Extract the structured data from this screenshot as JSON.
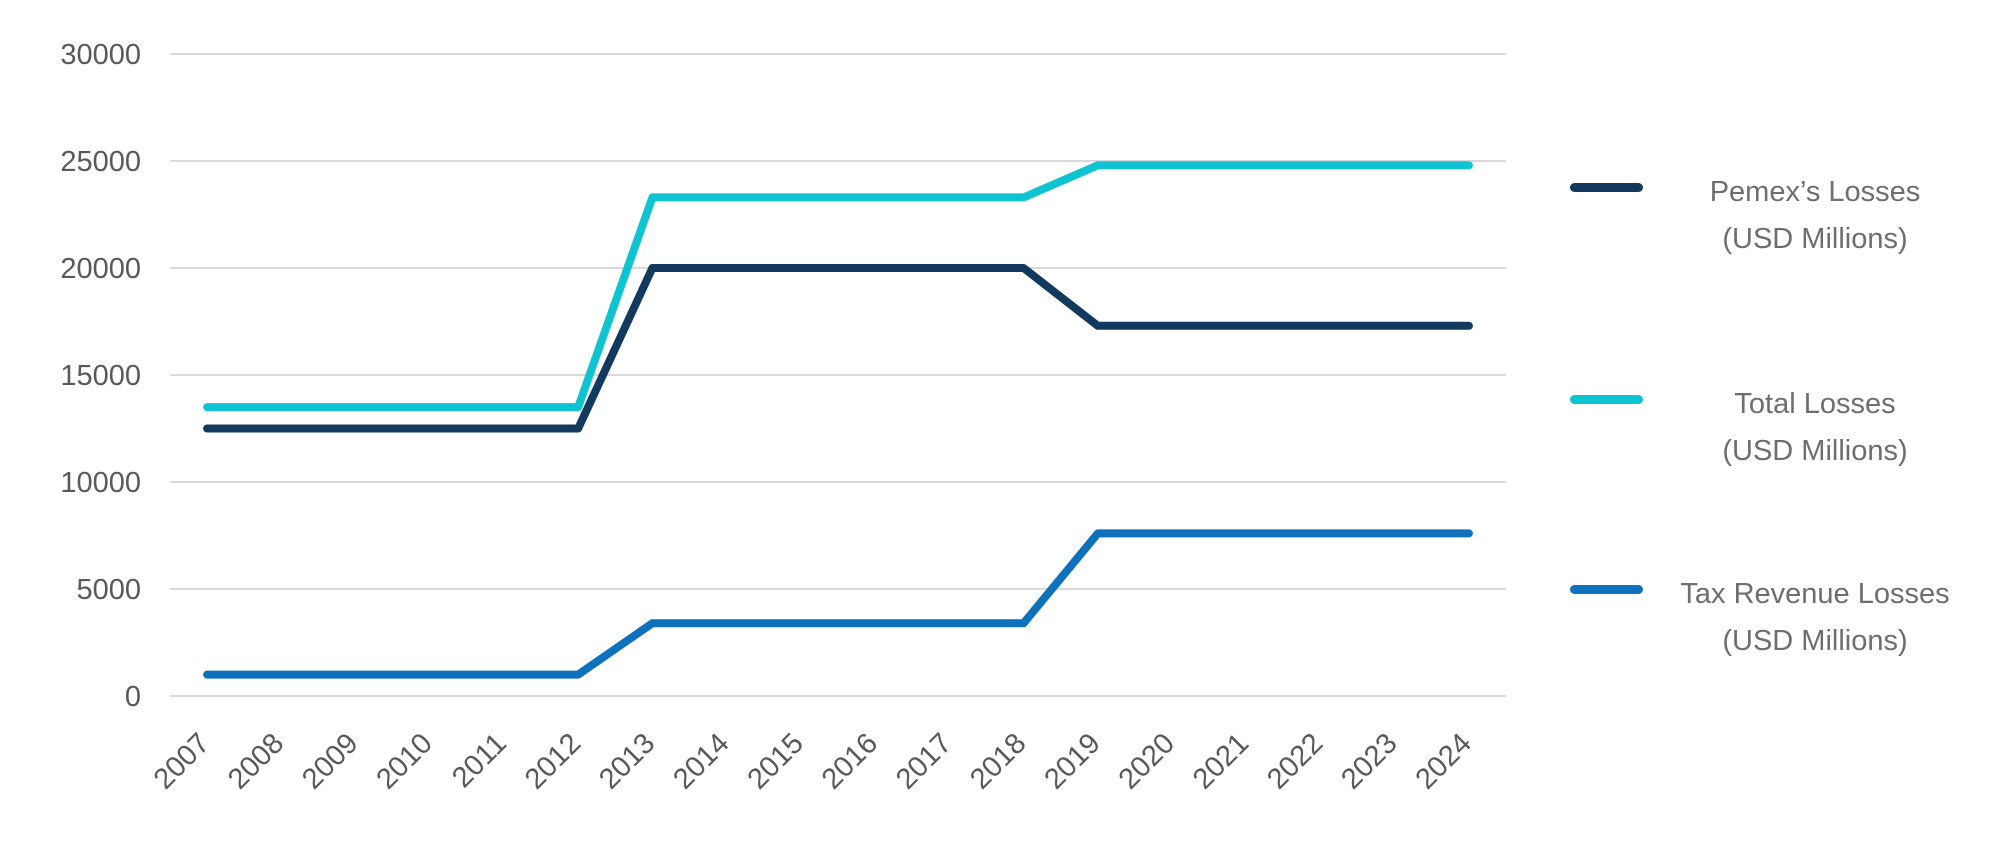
{
  "chart_data": {
    "type": "line",
    "title": "",
    "xlabel": "",
    "ylabel": "",
    "categories": [
      "2007",
      "2008",
      "2009",
      "2010",
      "2011",
      "2012",
      "2013",
      "2014",
      "2015",
      "2016",
      "2017",
      "2018",
      "2019",
      "2020",
      "2021",
      "2022",
      "2023",
      "2024"
    ],
    "series": [
      {
        "name": "Pemex’s Losses (USD Millions)",
        "legend_line1": "Pemex’s Losses",
        "legend_line2": "(USD Millions)",
        "color": "#12395e",
        "values": [
          12500,
          12500,
          12500,
          12500,
          12500,
          12500,
          20000,
          20000,
          20000,
          20000,
          20000,
          20000,
          17300,
          17300,
          17300,
          17300,
          17300,
          17300
        ]
      },
      {
        "name": "Total Losses (USD Millions)",
        "legend_line1": "Total Losses",
        "legend_line2": "(USD Millions)",
        "color": "#0ec3d2",
        "values": [
          13500,
          13500,
          13500,
          13500,
          13500,
          13500,
          23300,
          23300,
          23300,
          23300,
          23300,
          23300,
          24800,
          24800,
          24800,
          24800,
          24800,
          24800
        ]
      },
      {
        "name": "Tax Revenue Losses (USD Millions)",
        "legend_line1": "Tax Revenue Losses",
        "legend_line2": "(USD Millions)",
        "color": "#0e71bc",
        "values": [
          1000,
          1000,
          1000,
          1000,
          1000,
          1000,
          3400,
          3400,
          3400,
          3400,
          3400,
          3400,
          7600,
          7600,
          7600,
          7600,
          7600,
          7600
        ]
      }
    ],
    "yticks": [
      0,
      5000,
      10000,
      15000,
      20000,
      25000,
      30000
    ],
    "ylim": [
      0,
      30000
    ],
    "grid": true,
    "legend_position": "right",
    "axis_text_color": "#595959",
    "gridline_color": "#d9d9d9",
    "background": "#ffffff"
  }
}
